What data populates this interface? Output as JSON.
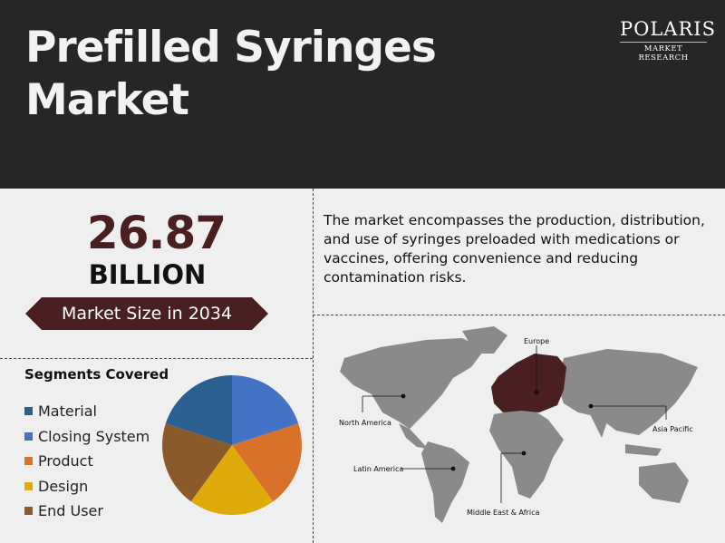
{
  "header": {
    "title": "Prefilled Syringes Market",
    "logo": {
      "name": "POLARIS",
      "tagline": "MARKET RESEARCH"
    }
  },
  "market": {
    "value": "26.87",
    "unit": "BILLION",
    "label": "Market Size in 2034"
  },
  "description": "The market encompasses the production, distribution, and use of syringes preloaded with medications or vaccines, offering convenience and reducing contamination risks.",
  "segments": {
    "title": "Segments Covered",
    "items": [
      {
        "label": "Material",
        "color": "#2a5f8f"
      },
      {
        "label": "Closing System",
        "color": "#4472c4"
      },
      {
        "label": "Product",
        "color": "#d9712b"
      },
      {
        "label": "Design",
        "color": "#e0aa0a"
      },
      {
        "label": "End User",
        "color": "#8b5a2b"
      }
    ]
  },
  "chart_data": {
    "type": "pie",
    "categories": [
      "Closing System",
      "Product",
      "Design",
      "End User",
      "Material"
    ],
    "values": [
      20,
      20,
      20,
      20,
      20
    ]
  },
  "map": {
    "highlight_color": "#4a1f22",
    "base_color": "#8a8a8a",
    "regions": [
      "Europe",
      "North America",
      "Asia Pacific",
      "Latin America",
      "Middle East & Africa"
    ]
  }
}
